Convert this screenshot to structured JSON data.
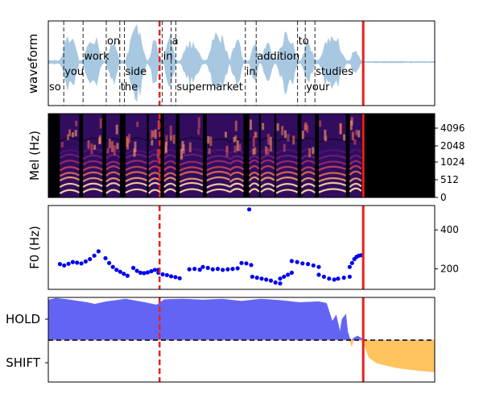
{
  "colors": {
    "waveform": "#a7c8e0",
    "marker_solid": "#e8201e",
    "marker_dashed": "#e8201e",
    "word_boundary": "#222222",
    "f0_points": "#0000ee",
    "hold_fill": "#6464f4",
    "shift_fill": "#ffc45e",
    "threshold_line": "#000000"
  },
  "chart_data": [
    {
      "panel": "waveform",
      "type": "area",
      "ylabel": "waveform",
      "words": [
        {
          "text": "so",
          "start": 0.0,
          "end": 0.04
        },
        {
          "text": "you",
          "start": 0.04,
          "end": 0.09
        },
        {
          "text": "work",
          "start": 0.09,
          "end": 0.15
        },
        {
          "text": "on",
          "start": 0.15,
          "end": 0.185
        },
        {
          "text": "the",
          "start": 0.185,
          "end": 0.197
        },
        {
          "text": "side",
          "start": 0.197,
          "end": 0.295
        },
        {
          "text": "in",
          "start": 0.295,
          "end": 0.318
        },
        {
          "text": "a",
          "start": 0.318,
          "end": 0.33
        },
        {
          "text": "supermarket",
          "start": 0.33,
          "end": 0.51
        },
        {
          "text": "in",
          "start": 0.51,
          "end": 0.538
        },
        {
          "text": "addition",
          "start": 0.538,
          "end": 0.645
        },
        {
          "text": "to",
          "start": 0.645,
          "end": 0.665
        },
        {
          "text": "your",
          "start": 0.665,
          "end": 0.69
        },
        {
          "text": "studies",
          "start": 0.69,
          "end": 0.815
        }
      ],
      "dashed_marker_t": 0.288,
      "solid_marker_t": 0.815
    },
    {
      "panel": "mel",
      "type": "heatmap",
      "ylabel": "Mel (Hz)",
      "yticks": [
        "0",
        "512",
        "1024",
        "2048",
        "4096"
      ]
    },
    {
      "panel": "f0",
      "type": "scatter",
      "ylabel": "F0 (Hz)",
      "yticks": [
        "200",
        "400"
      ],
      "ylim": [
        95,
        525
      ],
      "segments": [
        {
          "t0": 0.03,
          "t1": 0.13,
          "f": [
            225,
            218,
            226,
            235,
            232,
            228,
            238,
            250,
            268,
            290
          ]
        },
        {
          "t0": 0.148,
          "t1": 0.205,
          "f": [
            255,
            230,
            210,
            195,
            185,
            175,
            165
          ]
        },
        {
          "t0": 0.22,
          "t1": 0.285,
          "f": [
            205,
            190,
            180,
            178,
            182,
            188,
            195,
            195
          ]
        },
        {
          "t0": 0.285,
          "t1": 0.34,
          "f": [
            180,
            172,
            168,
            162,
            158,
            152
          ]
        },
        {
          "t0": 0.365,
          "t1": 0.392,
          "f": [
            198,
            200,
            196
          ]
        },
        {
          "t0": 0.4,
          "t1": 0.49,
          "f": [
            210,
            205,
            198,
            200,
            195,
            198,
            200,
            203
          ]
        },
        {
          "t0": 0.5,
          "t1": 0.525,
          "f": [
            230,
            228,
            220
          ]
        },
        {
          "t0": 0.528,
          "t1": 0.6,
          "f": [
            160,
            155,
            150,
            145,
            140,
            130,
            125
          ]
        },
        {
          "t0": 0.6,
          "t1": 0.63,
          "f": [
            150,
            160,
            170,
            180
          ]
        },
        {
          "t0": 0.63,
          "t1": 0.7,
          "f": [
            240,
            235,
            228,
            225,
            218,
            210
          ]
        },
        {
          "t0": 0.7,
          "t1": 0.74,
          "f": [
            170,
            160,
            150,
            145
          ]
        },
        {
          "t0": 0.75,
          "t1": 0.78,
          "f": [
            150,
            155,
            160
          ]
        },
        {
          "t0": 0.78,
          "t1": 0.81,
          "f": [
            210,
            230,
            250,
            262,
            268,
            270
          ]
        }
      ],
      "outlier": {
        "t": 0.52,
        "f": 505
      },
      "dashed_marker_t": 0.288,
      "solid_marker_t": 0.815
    },
    {
      "panel": "turn",
      "type": "area",
      "yticklabels": [
        "HOLD",
        "SHIFT"
      ],
      "hold_profile": [
        {
          "t": 0.0,
          "v": 0.96
        },
        {
          "t": 0.02,
          "v": 1.0
        },
        {
          "t": 0.05,
          "v": 0.97
        },
        {
          "t": 0.1,
          "v": 0.9
        },
        {
          "t": 0.12,
          "v": 0.86
        },
        {
          "t": 0.15,
          "v": 0.92
        },
        {
          "t": 0.2,
          "v": 0.98
        },
        {
          "t": 0.25,
          "v": 0.9
        },
        {
          "t": 0.28,
          "v": 0.84
        },
        {
          "t": 0.3,
          "v": 0.97
        },
        {
          "t": 0.35,
          "v": 0.98
        },
        {
          "t": 0.4,
          "v": 0.96
        },
        {
          "t": 0.45,
          "v": 0.98
        },
        {
          "t": 0.5,
          "v": 0.93
        },
        {
          "t": 0.55,
          "v": 0.98
        },
        {
          "t": 0.6,
          "v": 0.95
        },
        {
          "t": 0.65,
          "v": 0.9
        },
        {
          "t": 0.7,
          "v": 0.92
        },
        {
          "t": 0.72,
          "v": 0.88
        },
        {
          "t": 0.735,
          "v": 0.45
        },
        {
          "t": 0.745,
          "v": 0.6
        },
        {
          "t": 0.755,
          "v": 0.2
        },
        {
          "t": 0.76,
          "v": 0.5
        },
        {
          "t": 0.77,
          "v": 0.62
        },
        {
          "t": 0.775,
          "v": 0.2
        },
        {
          "t": 0.78,
          "v": 0.05
        },
        {
          "t": 0.785,
          "v": -0.15
        },
        {
          "t": 0.79,
          "v": 0.05
        },
        {
          "t": 0.8,
          "v": 0.1
        },
        {
          "t": 0.81,
          "v": 0.05
        },
        {
          "t": 0.815,
          "v": -0.05
        },
        {
          "t": 0.83,
          "v": -0.42
        },
        {
          "t": 0.85,
          "v": -0.55
        },
        {
          "t": 0.9,
          "v": -0.66
        },
        {
          "t": 0.95,
          "v": -0.72
        },
        {
          "t": 1.0,
          "v": -0.76
        }
      ],
      "dashed_marker_t": 0.288,
      "solid_marker_t": 0.815
    }
  ]
}
